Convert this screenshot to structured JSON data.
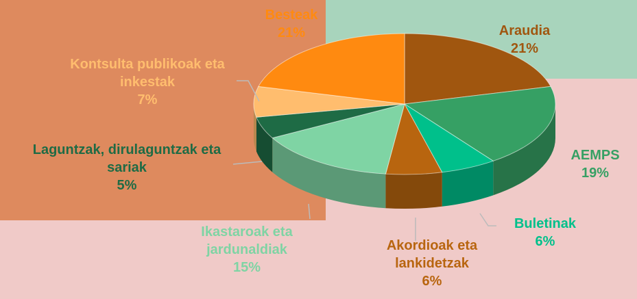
{
  "chart_data": {
    "type": "pie3d",
    "categories": [
      "Araudia",
      "AEMPS",
      "Buletinak",
      "Akordioak eta lankidetzak",
      "Ikastaroak eta jardunaldiak",
      "Laguntzak, dirulaguntzak eta sariak",
      "Kontsulta publikoak eta inkestak",
      "Besteak"
    ],
    "values": [
      21,
      19,
      6,
      6,
      15,
      5,
      7,
      21
    ],
    "value_labels": [
      "21%",
      "19%",
      "6%",
      "6%",
      "15%",
      "5%",
      "7%",
      "21%"
    ],
    "colors": [
      "#a0560f",
      "#36a064",
      "#00c08b",
      "#b8650f",
      "#7fd4a4",
      "#1e6b45",
      "#ffbd6e",
      "#ff8a10"
    ]
  }
}
